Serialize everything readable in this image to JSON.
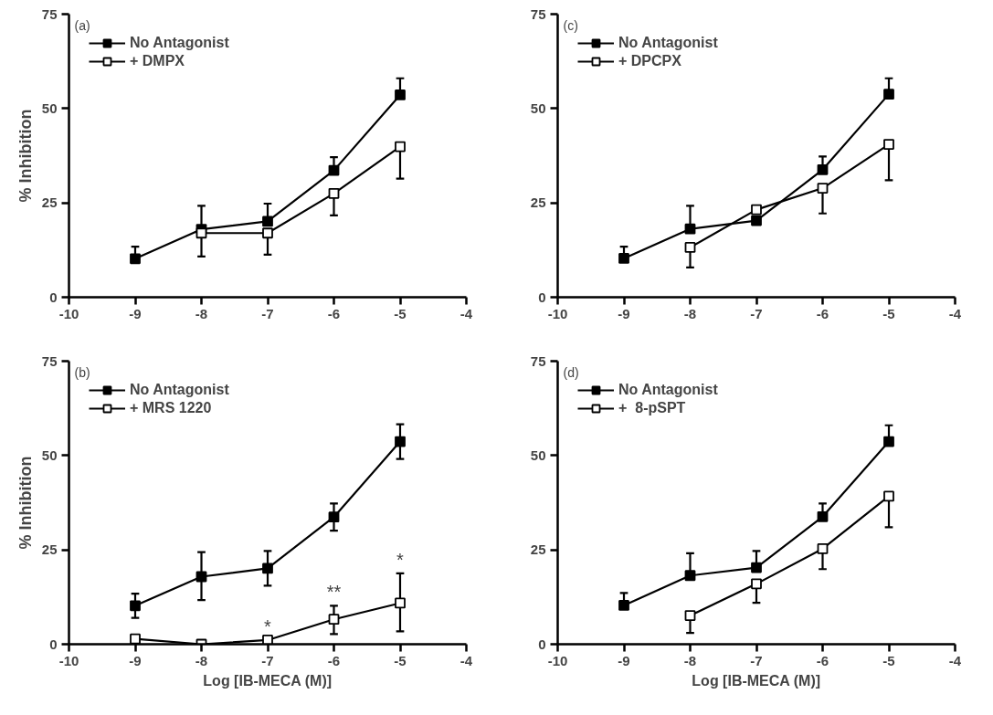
{
  "chart_data": [
    {
      "type": "line",
      "title": "(a)",
      "ylabel": "% Inhibition",
      "x": [
        -9,
        -8,
        -7,
        -6,
        -5
      ],
      "xlim": [
        -10,
        -4
      ],
      "xticks": [
        -10,
        -9,
        -8,
        -7,
        -6,
        -5,
        -4
      ],
      "ylim": [
        0,
        75
      ],
      "yticks": [
        0,
        25,
        50,
        75
      ],
      "grid": false,
      "legend": "top left",
      "line_style": "solid",
      "series": [
        {
          "name": "No Antagonist",
          "color": "#000000",
          "marker": "square",
          "values": [
            10.2,
            18,
            20.1,
            33.6,
            53.6
          ],
          "errors": [
            [
              10.2,
              13.4
            ],
            [
              18,
              24.2
            ],
            [
              20.1,
              24.8
            ],
            [
              33.6,
              37.1
            ],
            [
              53.6,
              58
            ]
          ]
        },
        {
          "name": "+ DMPX",
          "color": "#000000",
          "marker": "square_open",
          "x": [
            -8,
            -7,
            -6,
            -5
          ],
          "values": [
            17,
            17,
            27.5,
            39.9
          ],
          "errors": [
            [
              10.8,
              17
            ],
            [
              11.3,
              17
            ],
            [
              21.7,
              27.5
            ],
            [
              31.4,
              39.9
            ]
          ]
        }
      ]
    },
    {
      "type": "line",
      "title": "(c)",
      "x": [
        -9,
        -8,
        -7,
        -6,
        -5
      ],
      "xlim": [
        -10,
        -4
      ],
      "xticks": [
        -10,
        -9,
        -8,
        -7,
        -6,
        -5,
        -4
      ],
      "ylim": [
        0,
        75
      ],
      "yticks": [
        0,
        25,
        50,
        75
      ],
      "grid": false,
      "legend": "top left",
      "line_style": "solid",
      "series": [
        {
          "name": "No Antagonist",
          "color": "#000000",
          "marker": "square",
          "values": [
            10.3,
            18.1,
            20.3,
            33.8,
            53.8
          ],
          "errors": [
            [
              10.3,
              13.4
            ],
            [
              18.1,
              24.2
            ],
            [
              20.3,
              20.3
            ],
            [
              33.8,
              37.3
            ],
            [
              53.8,
              58
            ]
          ]
        },
        {
          "name": "+ DPCPX",
          "color": "#000000",
          "marker": "square_open",
          "x": [
            -8,
            -7,
            -6,
            -5
          ],
          "values": [
            13.2,
            23.2,
            28.9,
            40.5
          ],
          "errors": [
            [
              7.9,
              13.2
            ],
            [
              23.2,
              23.2
            ],
            [
              22.2,
              28.9
            ],
            [
              31,
              40.5
            ]
          ]
        }
      ]
    },
    {
      "type": "line",
      "title": "(b)",
      "ylabel": "% Inhibition",
      "xlabel": "Log [IB-MECA (M)]",
      "x": [
        -9,
        -8,
        -7,
        -6,
        -5
      ],
      "xlim": [
        -10,
        -4
      ],
      "xticks": [
        -10,
        -9,
        -8,
        -7,
        -6,
        -5,
        -4
      ],
      "ylim": [
        0,
        75
      ],
      "yticks": [
        0,
        25,
        50,
        75
      ],
      "grid": false,
      "legend": "top left",
      "line_style": "solid",
      "series": [
        {
          "name": "No Antagonist",
          "color": "#000000",
          "marker": "square",
          "values": [
            10.2,
            17.9,
            20.1,
            33.7,
            53.7
          ],
          "errors": [
            [
              7.0,
              13.4
            ],
            [
              11.7,
              24.4
            ],
            [
              15.5,
              24.7
            ],
            [
              30.1,
              37.3
            ],
            [
              49.1,
              58.3
            ]
          ]
        },
        {
          "name": "+ MRS 1220",
          "color": "#000000",
          "marker": "square_open",
          "values": [
            1.4,
            0,
            1.1,
            6.6,
            10.9
          ],
          "errors": [
            null,
            null,
            null,
            [
              2.7,
              10.2
            ],
            [
              3.4,
              18.8
            ]
          ]
        }
      ],
      "annotations": [
        {
          "text": "*",
          "x": -7,
          "y": 1.1
        },
        {
          "text": "**",
          "x": -6,
          "y": 6.6
        },
        {
          "text": "*",
          "x": -5,
          "y": 10.9
        }
      ]
    },
    {
      "type": "line",
      "title": "(d)",
      "xlabel": "Log [IB-MECA (M)]",
      "x": [
        -9,
        -8,
        -7,
        -6,
        -5
      ],
      "xlim": [
        -10,
        -4
      ],
      "xticks": [
        -10,
        -9,
        -8,
        -7,
        -6,
        -5,
        -4
      ],
      "ylim": [
        0,
        75
      ],
      "yticks": [
        0,
        25,
        50,
        75
      ],
      "grid": false,
      "legend": "top left",
      "line_style": "solid",
      "series": [
        {
          "name": "No Antagonist",
          "color": "#000000",
          "marker": "square",
          "values": [
            10.3,
            18.2,
            20.3,
            33.8,
            53.7
          ],
          "errors": [
            [
              10.3,
              13.6
            ],
            [
              18.2,
              24.1
            ],
            [
              20.3,
              24.7
            ],
            [
              33.8,
              37.3
            ],
            [
              53.7,
              58
            ]
          ]
        },
        {
          "name": "+  8-pSPT",
          "color": "#000000",
          "marker": "square_open",
          "x": [
            -8,
            -7,
            -6,
            -5
          ],
          "values": [
            7.6,
            16,
            25.3,
            39.2
          ],
          "errors": [
            [
              3.0,
              7.6
            ],
            [
              11,
              16
            ],
            [
              19.9,
              25.3
            ],
            [
              31,
              39.2
            ]
          ]
        }
      ]
    }
  ]
}
